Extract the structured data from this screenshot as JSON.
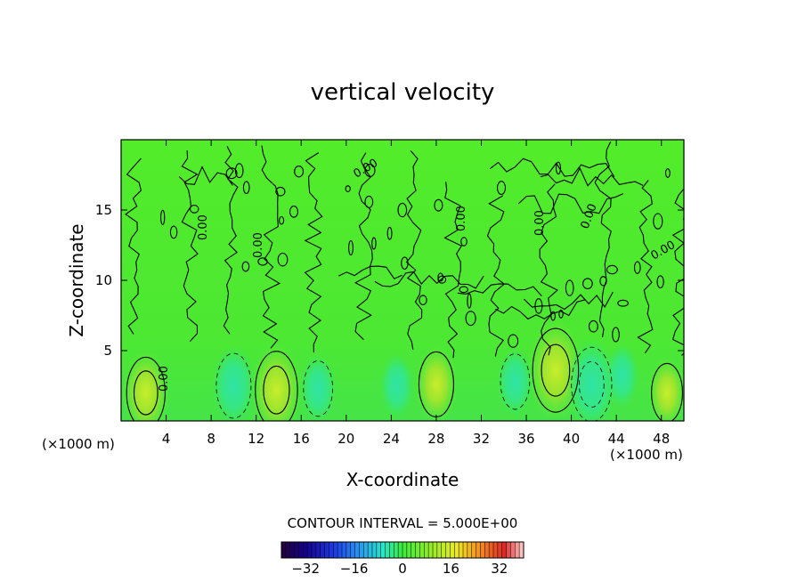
{
  "chart_data": {
    "type": "heatmap",
    "title": "vertical velocity",
    "xlabel": "X-coordinate",
    "ylabel": "Z-coordinate",
    "x_unit": "(×1000 m)",
    "x_unit_right": "(×1000 m)",
    "xlim": [
      0,
      50
    ],
    "ylim": [
      0,
      20
    ],
    "x_ticks": [
      4,
      8,
      12,
      16,
      20,
      24,
      28,
      32,
      36,
      40,
      44,
      48
    ],
    "x_tick_labels": [
      "4",
      "8",
      "12",
      "16",
      "20",
      "24",
      "28",
      "32",
      "36",
      "40",
      "44",
      "48"
    ],
    "y_ticks": [
      5,
      10,
      15
    ],
    "y_tick_labels": [
      "5",
      "10",
      "15"
    ],
    "contour_interval_label": "CONTOUR INTERVAL = 5.000E+00",
    "contour_interval": 5,
    "zero_contour_label": "0.00",
    "colorbar": {
      "range": [
        -40,
        40
      ],
      "ticks": [
        -32,
        -16,
        0,
        16,
        32
      ],
      "tick_labels": [
        "−32",
        "−16",
        "0",
        "16",
        "32"
      ]
    },
    "features": [
      {
        "kind": "updraft",
        "x": 2.2,
        "z": 2.0,
        "value": 10
      },
      {
        "kind": "updraft",
        "x": 13.8,
        "z": 2.2,
        "value": 12
      },
      {
        "kind": "updraft",
        "x": 28.0,
        "z": 2.6,
        "value": 8
      },
      {
        "kind": "updraft",
        "x": 38.6,
        "z": 3.6,
        "value": 14
      },
      {
        "kind": "updraft",
        "x": 48.5,
        "z": 2.0,
        "value": 6
      },
      {
        "kind": "downdraft",
        "x": 10.0,
        "z": 2.5,
        "value": -8
      },
      {
        "kind": "downdraft",
        "x": 17.5,
        "z": 2.3,
        "value": -5
      },
      {
        "kind": "downdraft",
        "x": 24.5,
        "z": 2.5,
        "value": -4
      },
      {
        "kind": "downdraft",
        "x": 35.0,
        "z": 2.8,
        "value": -5
      },
      {
        "kind": "downdraft",
        "x": 41.8,
        "z": 2.6,
        "value": -11
      },
      {
        "kind": "downdraft",
        "x": 44.5,
        "z": 3.2,
        "value": -4
      }
    ]
  }
}
